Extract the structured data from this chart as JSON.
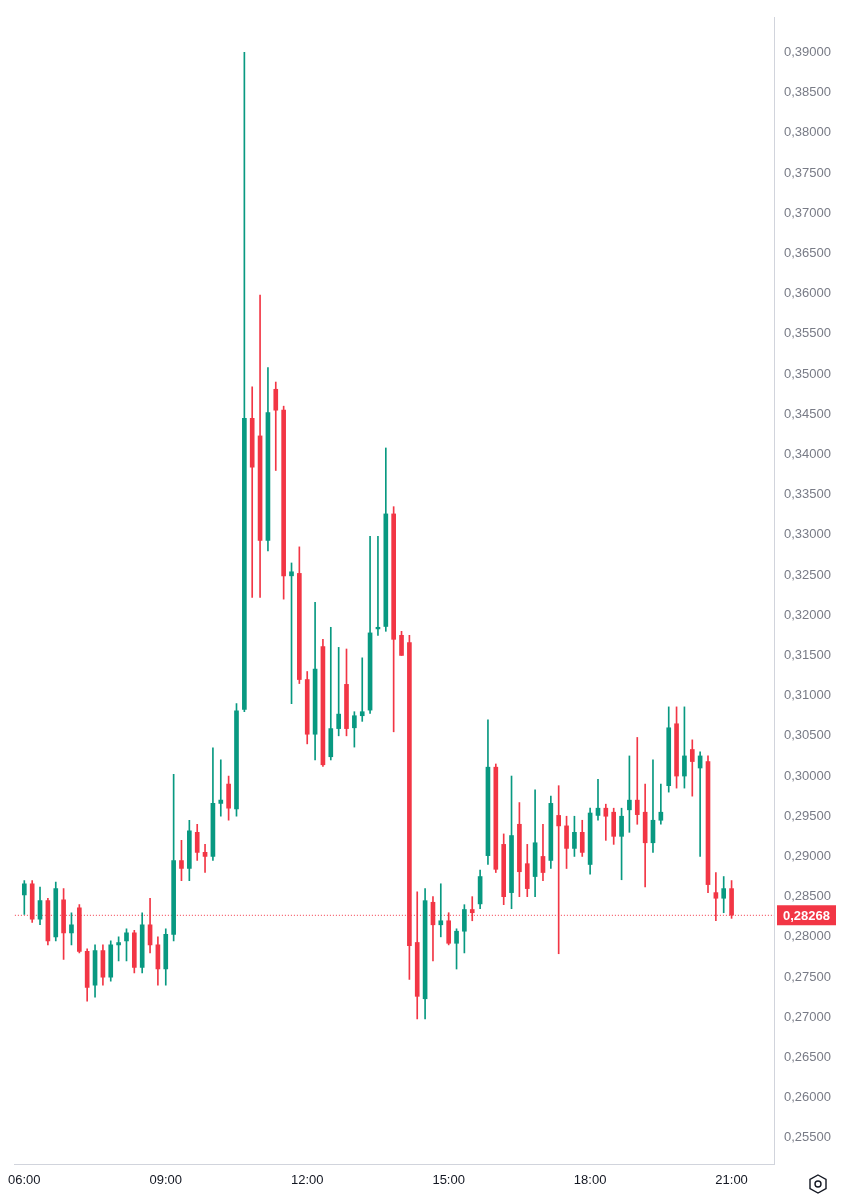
{
  "chart_data": {
    "type": "candlestick",
    "x": [
      6,
      6.167,
      6.333,
      6.5,
      6.667,
      6.833,
      7,
      7.167,
      7.333,
      7.5,
      7.667,
      7.833,
      8,
      8.167,
      8.333,
      8.5,
      8.667,
      8.833,
      9,
      9.167,
      9.333,
      9.5,
      9.667,
      9.833,
      10,
      10.167,
      10.333,
      10.5,
      10.667,
      10.833,
      11,
      11.167,
      11.333,
      11.5,
      11.667,
      11.833,
      12,
      12.167,
      12.333,
      12.5,
      12.667,
      12.833,
      13,
      13.167,
      13.333,
      13.5,
      13.667,
      13.833,
      14,
      14.167,
      14.333,
      14.5,
      14.667,
      14.833,
      15,
      15.167,
      15.333,
      15.5,
      15.667,
      15.833,
      16,
      16.167,
      16.333,
      16.5,
      16.667,
      16.833,
      17,
      17.167,
      17.333,
      17.5,
      17.667,
      17.833,
      18,
      18.167,
      18.333,
      18.5,
      18.667,
      18.833,
      19,
      19.167,
      19.333,
      19.5,
      19.667,
      19.833,
      20,
      20.167,
      20.333,
      20.5,
      20.667,
      20.833,
      21
    ],
    "ohlc": [
      [
        0.2852,
        0.287,
        0.2828,
        0.2866
      ],
      [
        0.2866,
        0.287,
        0.2818,
        0.2822
      ],
      [
        0.2822,
        0.2862,
        0.2815,
        0.2845
      ],
      [
        0.2845,
        0.2848,
        0.279,
        0.2795
      ],
      [
        0.28,
        0.2868,
        0.2795,
        0.286
      ],
      [
        0.2846,
        0.286,
        0.2772,
        0.2805
      ],
      [
        0.2805,
        0.283,
        0.279,
        0.2815
      ],
      [
        0.2836,
        0.284,
        0.278,
        0.2782
      ],
      [
        0.2782,
        0.2785,
        0.272,
        0.2737
      ],
      [
        0.274,
        0.279,
        0.2725,
        0.2783
      ],
      [
        0.2783,
        0.279,
        0.274,
        0.275
      ],
      [
        0.275,
        0.2795,
        0.2745,
        0.279
      ],
      [
        0.279,
        0.28,
        0.277,
        0.2793
      ],
      [
        0.2795,
        0.281,
        0.277,
        0.2805
      ],
      [
        0.2805,
        0.2808,
        0.2755,
        0.2762
      ],
      [
        0.2762,
        0.283,
        0.2755,
        0.2815
      ],
      [
        0.2815,
        0.2848,
        0.278,
        0.279
      ],
      [
        0.279,
        0.28,
        0.274,
        0.276
      ],
      [
        0.276,
        0.281,
        0.274,
        0.2803
      ],
      [
        0.2803,
        0.3002,
        0.2795,
        0.2895
      ],
      [
        0.2895,
        0.292,
        0.287,
        0.2885
      ],
      [
        0.2885,
        0.2945,
        0.287,
        0.2932
      ],
      [
        0.293,
        0.294,
        0.2895,
        0.2905
      ],
      [
        0.2905,
        0.2915,
        0.288,
        0.29
      ],
      [
        0.29,
        0.3035,
        0.2895,
        0.2966
      ],
      [
        0.2966,
        0.302,
        0.295,
        0.297
      ],
      [
        0.299,
        0.3,
        0.2945,
        0.296
      ],
      [
        0.2959,
        0.309,
        0.295,
        0.3081
      ],
      [
        0.3083,
        0.39,
        0.308,
        0.3445
      ],
      [
        0.3445,
        0.3484,
        0.3222,
        0.3384
      ],
      [
        0.3423,
        0.3598,
        0.3222,
        0.3293
      ],
      [
        0.3293,
        0.3508,
        0.328,
        0.3452
      ],
      [
        0.3481,
        0.349,
        0.338,
        0.3455
      ],
      [
        0.3455,
        0.346,
        0.322,
        0.3249
      ],
      [
        0.3249,
        0.3265,
        0.309,
        0.3254
      ],
      [
        0.3252,
        0.3285,
        0.3115,
        0.312
      ],
      [
        0.312,
        0.313,
        0.304,
        0.3052
      ],
      [
        0.3052,
        0.3216,
        0.302,
        0.3133
      ],
      [
        0.3161,
        0.317,
        0.3012,
        0.3014
      ],
      [
        0.3024,
        0.3185,
        0.302,
        0.3059
      ],
      [
        0.3059,
        0.316,
        0.305,
        0.3077
      ],
      [
        0.3114,
        0.3158,
        0.305,
        0.3059
      ],
      [
        0.306,
        0.308,
        0.3036,
        0.3075
      ],
      [
        0.3075,
        0.3147,
        0.3068,
        0.308
      ],
      [
        0.3082,
        0.3298,
        0.3078,
        0.3178
      ],
      [
        0.3183,
        0.3298,
        0.3175,
        0.3185
      ],
      [
        0.3186,
        0.3408,
        0.318,
        0.3326
      ],
      [
        0.3326,
        0.3335,
        0.3055,
        0.317
      ],
      [
        0.3175,
        0.318,
        0.315,
        0.315
      ],
      [
        0.3166,
        0.3175,
        0.2747,
        0.2789
      ],
      [
        0.2793,
        0.2856,
        0.2698,
        0.2726
      ],
      [
        0.2723,
        0.286,
        0.2698,
        0.2845
      ],
      [
        0.2843,
        0.285,
        0.277,
        0.2815
      ],
      [
        0.2815,
        0.2866,
        0.28,
        0.282
      ],
      [
        0.282,
        0.283,
        0.279,
        0.2792
      ],
      [
        0.2792,
        0.281,
        0.276,
        0.2807
      ],
      [
        0.2807,
        0.284,
        0.278,
        0.2834
      ],
      [
        0.2834,
        0.285,
        0.282,
        0.283
      ],
      [
        0.2841,
        0.2883,
        0.2835,
        0.2875
      ],
      [
        0.2901,
        0.307,
        0.289,
        0.3011
      ],
      [
        0.3011,
        0.3015,
        0.288,
        0.2884
      ],
      [
        0.2915,
        0.2928,
        0.284,
        0.285
      ],
      [
        0.2855,
        0.3,
        0.2835,
        0.2926
      ],
      [
        0.294,
        0.2967,
        0.285,
        0.2881
      ],
      [
        0.2891,
        0.2915,
        0.285,
        0.286
      ],
      [
        0.2875,
        0.2983,
        0.285,
        0.2917
      ],
      [
        0.29,
        0.294,
        0.287,
        0.288
      ],
      [
        0.2895,
        0.2975,
        0.2885,
        0.2966
      ],
      [
        0.2951,
        0.2988,
        0.2779,
        0.2938
      ],
      [
        0.2938,
        0.295,
        0.2885,
        0.291
      ],
      [
        0.291,
        0.295,
        0.29,
        0.293
      ],
      [
        0.293,
        0.2945,
        0.29,
        0.2905
      ],
      [
        0.289,
        0.296,
        0.2878,
        0.2954
      ],
      [
        0.2951,
        0.2996,
        0.2945,
        0.296
      ],
      [
        0.296,
        0.2965,
        0.292,
        0.295
      ],
      [
        0.2955,
        0.296,
        0.2915,
        0.2925
      ],
      [
        0.2925,
        0.296,
        0.2871,
        0.295
      ],
      [
        0.2958,
        0.3025,
        0.293,
        0.297
      ],
      [
        0.297,
        0.3048,
        0.294,
        0.2952
      ],
      [
        0.2955,
        0.299,
        0.2862,
        0.2917
      ],
      [
        0.2917,
        0.302,
        0.2905,
        0.2945
      ],
      [
        0.2945,
        0.299,
        0.294,
        0.2955
      ],
      [
        0.2988,
        0.3086,
        0.298,
        0.306
      ],
      [
        0.3065,
        0.3086,
        0.2985,
        0.3
      ],
      [
        0.3,
        0.3086,
        0.2985,
        0.3025
      ],
      [
        0.3033,
        0.3045,
        0.2975,
        0.3018
      ],
      [
        0.301,
        0.303,
        0.29,
        0.3025
      ],
      [
        0.3018,
        0.3025,
        0.2855,
        0.2865
      ],
      [
        0.2855,
        0.288,
        0.282,
        0.2848
      ],
      [
        0.2848,
        0.2875,
        0.283,
        0.286
      ],
      [
        0.286,
        0.287,
        0.2823,
        0.2827
      ]
    ],
    "colors": [
      "#089981",
      "#f23645",
      "#089981",
      "#f23645",
      "#089981",
      "#f23645",
      "#089981",
      "#f23645",
      "#f23645",
      "#089981",
      "#f23645",
      "#089981",
      "#089981",
      "#089981",
      "#f23645",
      "#089981",
      "#f23645",
      "#f23645",
      "#089981",
      "#089981",
      "#f23645",
      "#089981",
      "#f23645",
      "#f23645",
      "#089981",
      "#089981",
      "#f23645",
      "#089981",
      "#089981",
      "#f23645",
      "#f23645",
      "#089981",
      "#f23645",
      "#f23645",
      "#089981",
      "#f23645",
      "#f23645",
      "#089981",
      "#f23645",
      "#089981",
      "#089981",
      "#f23645",
      "#089981",
      "#089981",
      "#089981",
      "#089981",
      "#089981",
      "#f23645",
      "#f23645",
      "#f23645",
      "#f23645",
      "#089981",
      "#f23645",
      "#089981",
      "#f23645",
      "#089981",
      "#089981",
      "#f23645",
      "#089981",
      "#089981",
      "#f23645",
      "#f23645",
      "#089981",
      "#f23645",
      "#f23645",
      "#089981",
      "#f23645",
      "#089981",
      "#f23645",
      "#f23645",
      "#089981",
      "#f23645",
      "#089981",
      "#089981",
      "#f23645",
      "#f23645",
      "#089981",
      "#089981",
      "#f23645",
      "#f23645",
      "#089981",
      "#089981",
      "#089981",
      "#f23645",
      "#089981",
      "#f23645",
      "#089981",
      "#f23645",
      "#f23645",
      "#089981",
      "#f23645"
    ],
    "xlim": [
      5.8,
      21.9
    ],
    "xticks": [
      {
        "value": 6,
        "label": "06:00"
      },
      {
        "value": 9,
        "label": "09:00"
      },
      {
        "value": 12,
        "label": "12:00"
      },
      {
        "value": 15,
        "label": "15:00"
      },
      {
        "value": 18,
        "label": "18:00"
      },
      {
        "value": 21,
        "label": "21:00"
      }
    ],
    "ylim": [
      0.2517,
      0.3943
    ],
    "yticks": [
      {
        "value": 0.255,
        "label": "0,25500"
      },
      {
        "value": 0.26,
        "label": "0,26000"
      },
      {
        "value": 0.265,
        "label": "0,26500"
      },
      {
        "value": 0.27,
        "label": "0,27000"
      },
      {
        "value": 0.275,
        "label": "0,27500"
      },
      {
        "value": 0.28,
        "label": "0,28000"
      },
      {
        "value": 0.285,
        "label": "0,28500"
      },
      {
        "value": 0.29,
        "label": "0,29000"
      },
      {
        "value": 0.295,
        "label": "0,29500"
      },
      {
        "value": 0.3,
        "label": "0,30000"
      },
      {
        "value": 0.305,
        "label": "0,30500"
      },
      {
        "value": 0.31,
        "label": "0,31000"
      },
      {
        "value": 0.315,
        "label": "0,31500"
      },
      {
        "value": 0.32,
        "label": "0,32000"
      },
      {
        "value": 0.325,
        "label": "0,32500"
      },
      {
        "value": 0.33,
        "label": "0,33000"
      },
      {
        "value": 0.335,
        "label": "0,33500"
      },
      {
        "value": 0.34,
        "label": "0,34000"
      },
      {
        "value": 0.345,
        "label": "0,34500"
      },
      {
        "value": 0.35,
        "label": "0,35000"
      },
      {
        "value": 0.355,
        "label": "0,35500"
      },
      {
        "value": 0.36,
        "label": "0,36000"
      },
      {
        "value": 0.365,
        "label": "0,36500"
      },
      {
        "value": 0.37,
        "label": "0,37000"
      },
      {
        "value": 0.375,
        "label": "0,37500"
      },
      {
        "value": 0.38,
        "label": "0,38000"
      },
      {
        "value": 0.385,
        "label": "0,38500"
      },
      {
        "value": 0.39,
        "label": "0,39000"
      }
    ],
    "ref_lines": [
      {
        "axis": "y",
        "value": 0.28268,
        "label": "0,28268",
        "color": "#f23645",
        "line_style": "dotted"
      }
    ],
    "grid": false,
    "legend": false
  }
}
